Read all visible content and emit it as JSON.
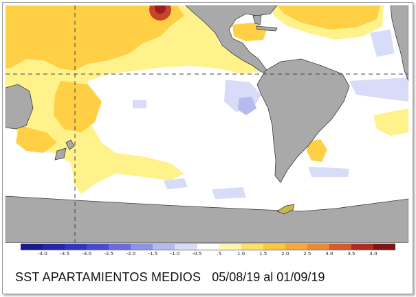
{
  "map": {
    "ocean_color": "#ffffff",
    "land_color": "#a9a9a9",
    "coast_color": "#3a3a3a",
    "warm_colors": [
      "#fff28a",
      "#ffd045",
      "#f7ad3a",
      "#e98a34",
      "#c9452a",
      "#9b1d1d"
    ],
    "cool_colors": [
      "#d8dcf8",
      "#b3bbf1",
      "#8f98e6"
    ]
  },
  "legend": {
    "ticks": [
      "-4.0",
      "-3.5",
      "-3.0",
      "-2.5",
      "-2.0",
      "-1.5",
      "-1.0",
      "-0.5",
      ".5",
      "1.0",
      "1.5",
      "2.0",
      "2.5",
      "3.0",
      "3.5",
      "4.0"
    ],
    "colors": [
      "#1a1a8c",
      "#2626a8",
      "#3434c0",
      "#4a4ad0",
      "#6b6bdc",
      "#8d93e6",
      "#b3bbf1",
      "#d8dcf8",
      "#ffffff",
      "#fff7b0",
      "#ffe066",
      "#ffc73a",
      "#f6a83a",
      "#e98a34",
      "#d65a2a",
      "#b02a20",
      "#7d1414"
    ]
  },
  "caption": {
    "title": "SST APARTAMIENTOS MEDIOS",
    "period": "05/08/19 al 01/09/19"
  }
}
